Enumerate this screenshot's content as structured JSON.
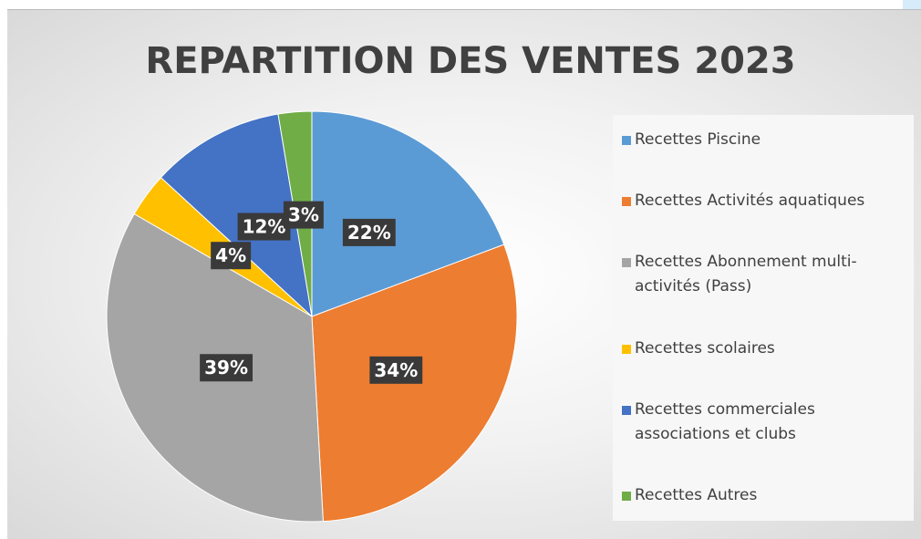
{
  "chart_data": {
    "type": "pie",
    "title": "REPARTITION DES VENTES 2023",
    "categories": [
      "Recettes Piscine",
      "Recettes Activités aquatiques",
      "Recettes Abonnement multi-activités (Pass)",
      "Recettes scolaires",
      "Recettes commerciales associations et clubs",
      "Recettes Autres"
    ],
    "values": [
      22,
      34,
      39,
      4,
      12,
      3
    ],
    "value_labels": [
      "22%",
      "34%",
      "39%",
      "4%",
      "12%",
      "3%"
    ],
    "colors": [
      "#5b9bd5",
      "#ed7d31",
      "#a5a5a5",
      "#ffc000",
      "#4472c4",
      "#70ad47"
    ],
    "legend": "right"
  }
}
